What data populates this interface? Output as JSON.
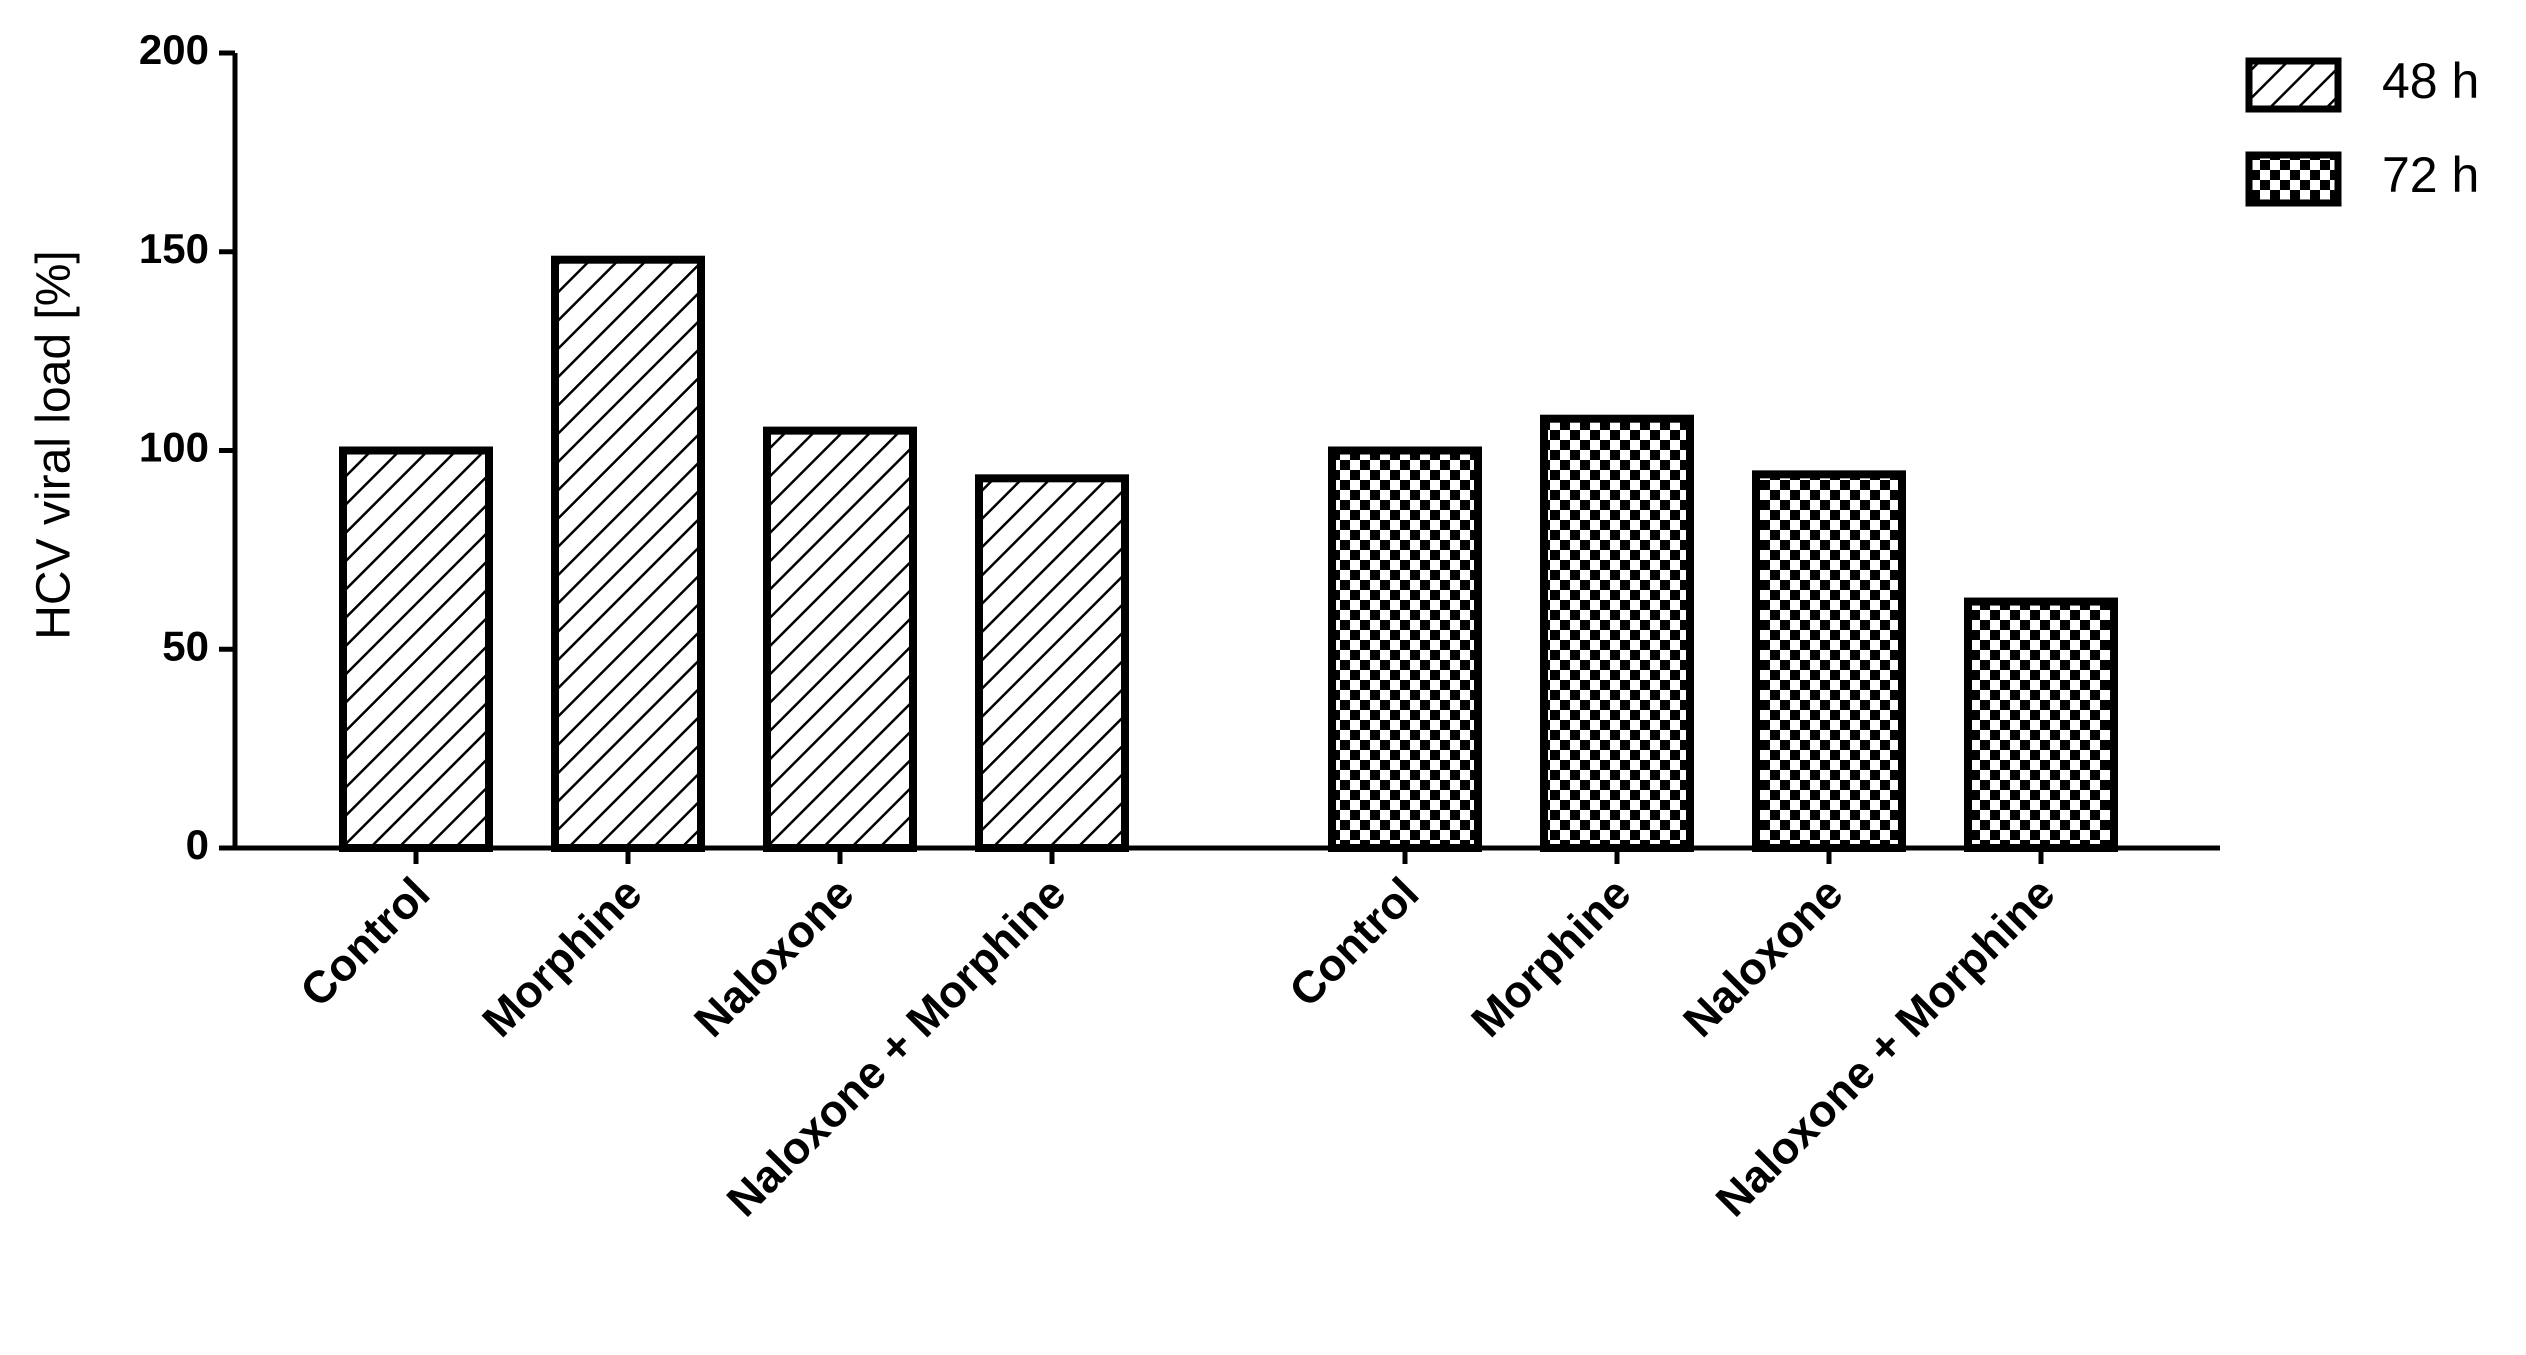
{
  "chart_data": {
    "type": "bar",
    "y_label": "HCV viral load [%]",
    "categories": [
      "Control",
      "Morphine",
      "Naloxone",
      "Naloxone + Morphine"
    ],
    "series": [
      {
        "name": "48 h",
        "color": "#000000",
        "pattern": "hatch",
        "values": [
          100,
          148,
          105,
          93
        ]
      },
      {
        "name": "72 h",
        "color": "#000000",
        "pattern": "checker",
        "values": [
          100,
          108,
          94,
          62
        ]
      }
    ],
    "ylim": [
      0,
      200
    ],
    "yticks": [
      0,
      50,
      100,
      150,
      200
    ],
    "grid": false,
    "legend": "top-right"
  }
}
